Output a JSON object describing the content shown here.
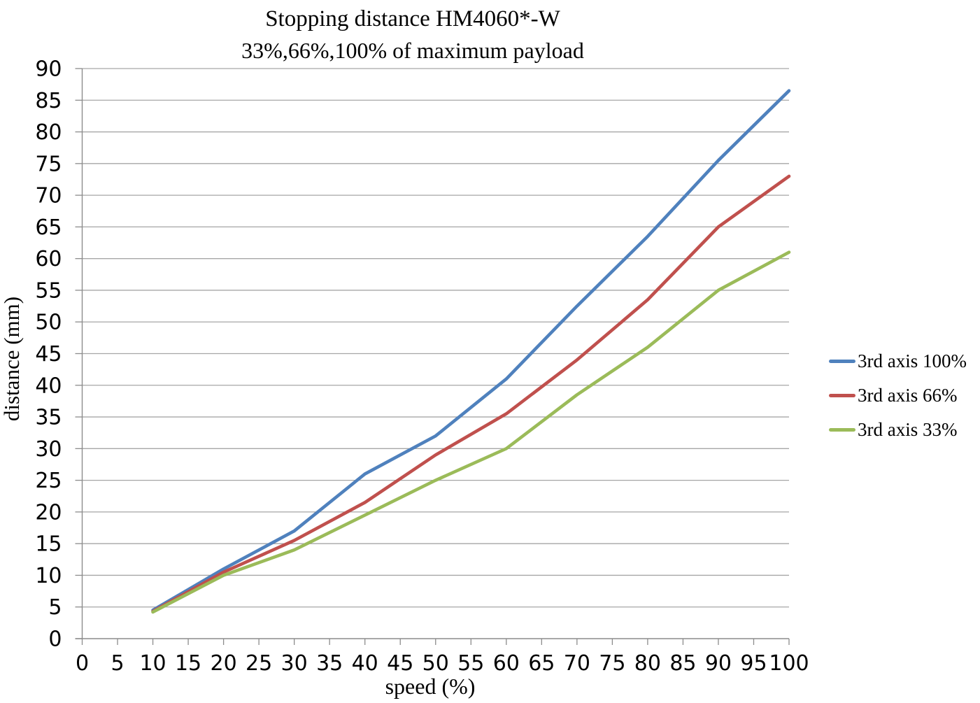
{
  "chart_data": {
    "type": "line",
    "title": "Stopping distance HM4060*-W",
    "subtitle": "33%,66%,100% of maximum payload",
    "xlabel": "speed (%)",
    "ylabel": "distance (mm)",
    "xlim": [
      0,
      100
    ],
    "ylim": [
      0,
      90
    ],
    "x_ticks": [
      0,
      5,
      10,
      15,
      20,
      25,
      30,
      35,
      40,
      45,
      50,
      55,
      60,
      65,
      70,
      75,
      80,
      85,
      90,
      95,
      100
    ],
    "y_ticks": [
      0,
      5,
      10,
      15,
      20,
      25,
      30,
      35,
      40,
      45,
      50,
      55,
      60,
      65,
      70,
      75,
      80,
      85,
      90
    ],
    "grid": "horizontal-only",
    "legend_position": "right",
    "x": [
      10,
      20,
      30,
      40,
      50,
      60,
      70,
      80,
      90,
      100
    ],
    "series": [
      {
        "name": "3rd axis 100%",
        "color": "#4F81BD",
        "values": [
          4.5,
          11,
          17,
          26,
          32,
          41,
          52.5,
          63.5,
          75.5,
          86.5
        ]
      },
      {
        "name": "3rd axis 66%",
        "color": "#C0504D",
        "values": [
          4.3,
          10.5,
          15.5,
          21.5,
          29,
          35.5,
          44,
          53.5,
          65,
          73
        ]
      },
      {
        "name": "3rd axis 33%",
        "color": "#9BBB59",
        "values": [
          4.2,
          10,
          14,
          19.5,
          25,
          30,
          38.5,
          46,
          55,
          61
        ]
      }
    ],
    "grid_color": "#A6A6A6",
    "axis_color": "#8C8C8C",
    "text_color": "#000000"
  }
}
